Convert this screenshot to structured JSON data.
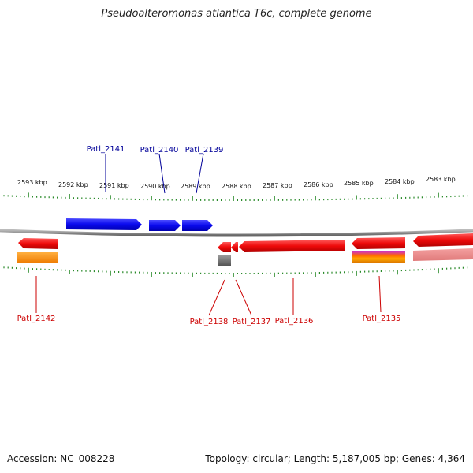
{
  "title": "Pseudoalteromonas atlantica T6c, complete genome",
  "footer": {
    "accession": "Accession: NC_008228",
    "summary": "Topology: circular; Length: 5,187,005 bp; Genes: 4,364"
  },
  "colors": {
    "forward_gene": "#1010ee",
    "reverse_gene": "#ee1111",
    "backbone": "#8a8a8a",
    "ticks": "#2a8a2a",
    "forward_label": "#000099",
    "reverse_label": "#cc0000"
  },
  "scale": {
    "ticks": [
      "2593 kbp",
      "2592 kbp",
      "2591 kbp",
      "2590 kbp",
      "2589 kbp",
      "2588 kbp",
      "2587 kbp",
      "2586 kbp",
      "2585 kbp",
      "2584 kbp",
      "2583 kbp"
    ]
  },
  "labels": {
    "forward": [
      "Patl_2141",
      "Patl_2140",
      "Patl_2139"
    ],
    "reverse": [
      "Patl_2142",
      "Patl_2138",
      "Patl_2137",
      "Patl_2136",
      "Patl_2135"
    ]
  }
}
